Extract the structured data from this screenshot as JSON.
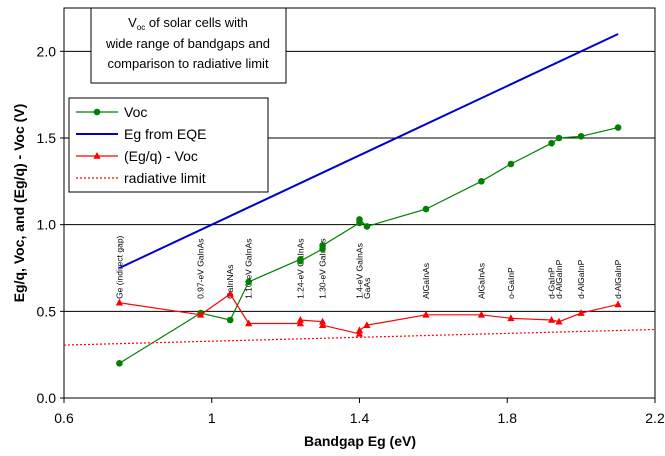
{
  "chart_data": {
    "type": "line",
    "title_main": "V",
    "title_sub": "oc",
    "title_rest": " of solar cells with",
    "title_line2": "wide range of bandgaps and",
    "title_line3": "comparison to radiative limit",
    "xlabel": "Bandgap Eg  (eV)",
    "ylabel": "Eg/q, Voc, and (Eg/q) - Voc  (V)",
    "xlim": [
      0.6,
      2.2
    ],
    "ylim": [
      0.0,
      2.25
    ],
    "xticks": [
      "0.6",
      "1",
      "1.4",
      "1.8",
      "2.2"
    ],
    "xtick_values": [
      0.6,
      1.0,
      1.4,
      1.8,
      2.2
    ],
    "yticks": [
      "0.0",
      "0.5",
      "1.0",
      "1.5",
      "2.0"
    ],
    "ytick_values": [
      0.0,
      0.5,
      1.0,
      1.5,
      2.0
    ],
    "grid": "horizontal",
    "legend_position": "upper-left",
    "series": [
      {
        "name": "Voc",
        "color": "#008000",
        "marker": "circle",
        "x": [
          0.75,
          0.97,
          1.05,
          1.1,
          1.24,
          1.24,
          1.3,
          1.3,
          1.4,
          1.4,
          1.42,
          1.58,
          1.73,
          1.81,
          1.92,
          1.94,
          2.0,
          2.1
        ],
        "y": [
          0.2,
          0.49,
          0.45,
          0.67,
          0.8,
          0.79,
          0.86,
          0.88,
          1.01,
          1.03,
          0.99,
          1.09,
          1.25,
          1.35,
          1.47,
          1.5,
          1.51,
          1.56
        ]
      },
      {
        "name": "Eg from EQE",
        "color": "#0000cc",
        "marker": "none",
        "x": [
          0.75,
          2.1
        ],
        "y": [
          0.75,
          2.1
        ]
      },
      {
        "name": "(Eg/q) - Voc",
        "color": "#ff0000",
        "marker": "triangle",
        "x": [
          0.75,
          0.97,
          1.05,
          1.1,
          1.24,
          1.24,
          1.3,
          1.3,
          1.4,
          1.4,
          1.42,
          1.58,
          1.73,
          1.81,
          1.92,
          1.94,
          2.0,
          2.1
        ],
        "y": [
          0.55,
          0.48,
          0.6,
          0.43,
          0.43,
          0.45,
          0.44,
          0.42,
          0.37,
          0.39,
          0.42,
          0.48,
          0.48,
          0.46,
          0.45,
          0.44,
          0.49,
          0.54
        ]
      },
      {
        "name": "radiative limit",
        "color": "#ff0000",
        "marker": "none",
        "dashed": true,
        "x": [
          0.6,
          2.2
        ],
        "y": [
          0.305,
          0.395
        ]
      }
    ],
    "annotations": [
      {
        "text": "Ge  (indirect gap)",
        "x": 0.75
      },
      {
        "text": "0.97-eV GaInAs",
        "x": 0.97
      },
      {
        "text": "GaInNAs",
        "x": 1.05
      },
      {
        "text": "1.10-eV GaInAs",
        "x": 1.1
      },
      {
        "text": "1.24-eV GaInAs",
        "x": 1.24
      },
      {
        "text": "1.30-eV GaInAs",
        "x": 1.3
      },
      {
        "text": "1.4-eV GaInAs",
        "x": 1.4
      },
      {
        "text": "GaAs",
        "x": 1.42
      },
      {
        "text": "AlGaInAs",
        "x": 1.58
      },
      {
        "text": "AlGaInAs",
        "x": 1.73
      },
      {
        "text": "o-GaInP",
        "x": 1.81
      },
      {
        "text": "d-GaInP",
        "x": 1.92
      },
      {
        "text": "d-AlGaInP",
        "x": 1.94
      },
      {
        "text": "d-AlGaInP",
        "x": 2.0
      },
      {
        "text": "d-AlGaInP",
        "x": 2.1
      }
    ]
  }
}
